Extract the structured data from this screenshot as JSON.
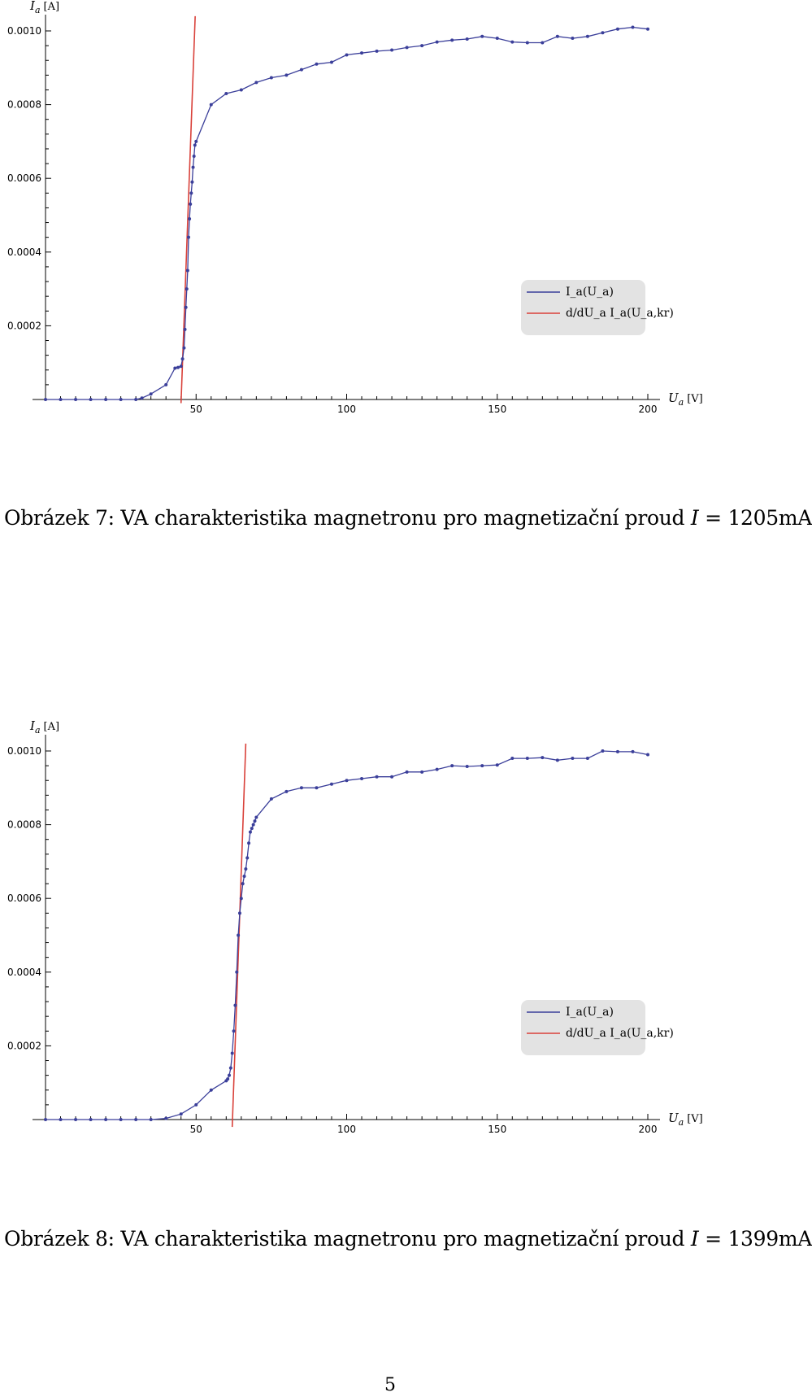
{
  "chart_data": [
    {
      "type": "line",
      "title": "",
      "xlabel_var": "U",
      "xlabel_sub": "a",
      "xlabel_unit": "[V]",
      "ylabel_var": "I",
      "ylabel_sub": "a",
      "ylabel_unit": "[A]",
      "xlim": [
        0,
        200
      ],
      "ylim": [
        0,
        0.00105
      ],
      "x_ticks": [
        "50",
        "100",
        "150",
        "200"
      ],
      "y_ticks": [
        "0.0002",
        "0.0004",
        "0.0006",
        "0.0008",
        "0.0010"
      ],
      "legend_position": "right",
      "series": [
        {
          "name": "I_a(U_a)",
          "color": "#3b3f9a",
          "x": [
            0,
            5,
            10,
            15,
            20,
            25,
            30,
            32,
            35,
            40,
            43,
            44,
            45,
            45.5,
            46,
            46.3,
            46.6,
            46.9,
            47.2,
            47.5,
            47.8,
            48.1,
            48.4,
            48.7,
            49,
            49.3,
            49.6,
            50,
            55,
            60,
            65,
            70,
            75,
            80,
            85,
            90,
            95,
            100,
            105,
            110,
            115,
            120,
            125,
            130,
            135,
            140,
            145,
            150,
            155,
            160,
            165,
            170,
            175,
            180,
            185,
            190,
            195,
            200
          ],
          "y": [
            0,
            0,
            0,
            0,
            0,
            0,
            0,
            4e-06,
            1.5e-05,
            4e-05,
            8.5e-05,
            8.7e-05,
            9e-05,
            0.00011,
            0.00014,
            0.00019,
            0.00025,
            0.0003,
            0.00035,
            0.00044,
            0.00049,
            0.00053,
            0.00056,
            0.00059,
            0.00063,
            0.00066,
            0.00069,
            0.0007,
            0.0008,
            0.00083,
            0.00084,
            0.00086,
            0.000873,
            0.00088,
            0.000895,
            0.00091,
            0.000915,
            0.000935,
            0.00094,
            0.000945,
            0.000948,
            0.000955,
            0.00096,
            0.00097,
            0.000975,
            0.000978,
            0.000985,
            0.00098,
            0.00097,
            0.000968,
            0.000968,
            0.000985,
            0.00098,
            0.000985,
            0.000995,
            0.001005,
            0.00101,
            0.001005
          ]
        },
        {
          "name": "d/dU_a I_a(U_a,kr)",
          "color": "#d9413a",
          "x": [
            45,
            49.7
          ],
          "y": [
            -1e-05,
            0.00104
          ]
        }
      ]
    },
    {
      "type": "line",
      "title": "",
      "xlabel_var": "U",
      "xlabel_sub": "a",
      "xlabel_unit": "[V]",
      "ylabel_var": "I",
      "ylabel_sub": "a",
      "ylabel_unit": "[A]",
      "xlim": [
        0,
        200
      ],
      "ylim": [
        0,
        0.00105
      ],
      "x_ticks": [
        "50",
        "100",
        "150",
        "200"
      ],
      "y_ticks": [
        "0.0002",
        "0.0004",
        "0.0006",
        "0.0008",
        "0.0010"
      ],
      "legend_position": "right",
      "series": [
        {
          "name": "I_a(U_a)",
          "color": "#3b3f9a",
          "x": [
            0,
            5,
            10,
            15,
            20,
            25,
            30,
            35,
            40,
            45,
            50,
            55,
            60,
            60.5,
            61,
            61.5,
            62,
            62.5,
            63,
            63.5,
            64,
            64.5,
            65,
            65.5,
            66,
            66.5,
            67,
            67.5,
            68,
            68.5,
            69,
            69.5,
            70,
            75,
            80,
            85,
            90,
            95,
            100,
            105,
            110,
            115,
            120,
            125,
            130,
            135,
            140,
            145,
            150,
            155,
            160,
            165,
            170,
            175,
            180,
            185,
            190,
            195,
            200
          ],
          "y": [
            0,
            0,
            0,
            0,
            0,
            0,
            0,
            0,
            3e-06,
            1.5e-05,
            4e-05,
            8e-05,
            0.000105,
            0.00011,
            0.00012,
            0.00014,
            0.00018,
            0.00024,
            0.00031,
            0.0004,
            0.0005,
            0.00056,
            0.0006,
            0.00064,
            0.00066,
            0.00068,
            0.00071,
            0.00075,
            0.00078,
            0.00079,
            0.0008,
            0.00081,
            0.00082,
            0.00087,
            0.00089,
            0.0009,
            0.0009,
            0.00091,
            0.00092,
            0.000925,
            0.00093,
            0.00093,
            0.000943,
            0.000943,
            0.00095,
            0.00096,
            0.000958,
            0.00096,
            0.000962,
            0.00098,
            0.00098,
            0.000982,
            0.000975,
            0.00098,
            0.00098,
            0.001,
            0.000998,
            0.000998,
            0.00099
          ]
        },
        {
          "name": "d/dU_a I_a(U_a,kr)",
          "color": "#d9413a",
          "x": [
            62,
            66.5
          ],
          "y": [
            -2e-05,
            0.00102
          ]
        }
      ]
    }
  ],
  "captions": [
    {
      "prefix": "Obrázek 7: VA charakteristika magnetronu pro magnetizační proud ",
      "var": "I",
      "rest": " = 1205mA"
    },
    {
      "prefix": "Obrázek 8: VA charakteristika magnetronu pro magnetizační proud ",
      "var": "I",
      "rest": " = 1399mA"
    }
  ],
  "page_number": "5"
}
